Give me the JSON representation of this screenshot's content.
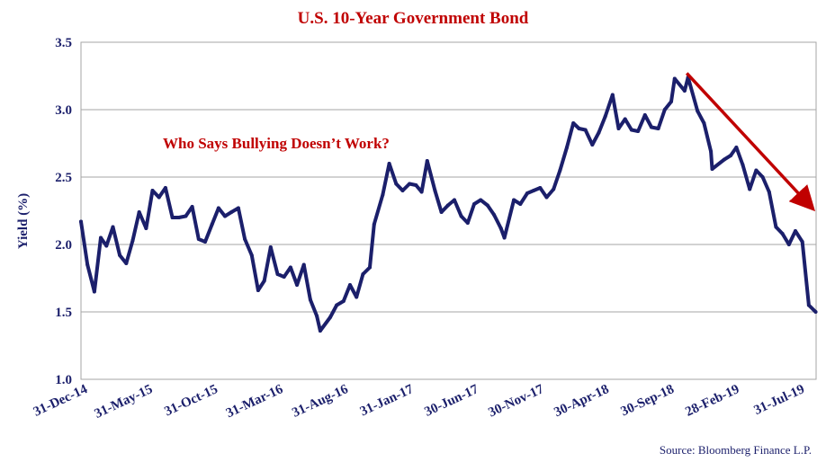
{
  "chart_data": {
    "type": "line",
    "title": "U.S. 10-Year Government Bond",
    "ylabel": "Yield (%)",
    "xlabel": "",
    "ylim": [
      1.0,
      3.5
    ],
    "yticks": [
      1.0,
      1.5,
      2.0,
      2.5,
      3.0,
      3.5
    ],
    "y_tick_labels": [
      "1.0",
      "1.5",
      "2.0",
      "2.5",
      "3.0",
      "3.5"
    ],
    "x_tick_labels": [
      "31-Dec-14",
      "31-May-15",
      "31-Oct-15",
      "31-Mar-16",
      "31-Aug-16",
      "31-Jan-17",
      "30-Jun-17",
      "30-Nov-17",
      "30-Apr-18",
      "30-Sep-18",
      "28-Feb-19",
      "31-Jul-19"
    ],
    "xlim": [
      "2014-12-31",
      "2019-09-01"
    ],
    "grid": "horizontal",
    "annotation": "Who Says Bullying Doesn’t Work?",
    "source": "Source: Bloomberg Finance L.P.",
    "colors": {
      "line": "#1b1f6b",
      "title": "#c00000",
      "arrow": "#c00000",
      "grid": "#a6a6a6"
    },
    "arrow": {
      "from": [
        "2018-11-05",
        3.27
      ],
      "to": [
        "2019-08-20",
        2.28
      ]
    },
    "series": [
      {
        "x": [
          "2014-12-31",
          "2015-01-15",
          "2015-01-31",
          "2015-02-15",
          "2015-02-28",
          "2015-03-15",
          "2015-03-31",
          "2015-04-15",
          "2015-04-30",
          "2015-05-15",
          "2015-05-31",
          "2015-06-15",
          "2015-06-30",
          "2015-07-15",
          "2015-07-31",
          "2015-08-15",
          "2015-08-31",
          "2015-09-15",
          "2015-09-30",
          "2015-10-15",
          "2015-10-31",
          "2015-11-15",
          "2015-11-30",
          "2015-12-15",
          "2015-12-31",
          "2016-01-15",
          "2016-01-31",
          "2016-02-15",
          "2016-02-29",
          "2016-03-15",
          "2016-03-31",
          "2016-04-15",
          "2016-04-30",
          "2016-05-15",
          "2016-05-31",
          "2016-06-15",
          "2016-06-30",
          "2016-07-08",
          "2016-07-31",
          "2016-08-15",
          "2016-08-31",
          "2016-09-15",
          "2016-09-30",
          "2016-10-15",
          "2016-10-31",
          "2016-11-10",
          "2016-11-30",
          "2016-12-15",
          "2016-12-31",
          "2017-01-15",
          "2017-01-31",
          "2017-02-15",
          "2017-02-28",
          "2017-03-13",
          "2017-03-31",
          "2017-04-15",
          "2017-04-30",
          "2017-05-15",
          "2017-05-31",
          "2017-06-15",
          "2017-06-30",
          "2017-07-15",
          "2017-07-31",
          "2017-08-15",
          "2017-08-31",
          "2017-09-08",
          "2017-09-30",
          "2017-10-15",
          "2017-10-31",
          "2017-11-15",
          "2017-11-30",
          "2017-12-15",
          "2017-12-31",
          "2018-01-15",
          "2018-01-31",
          "2018-02-15",
          "2018-02-28",
          "2018-03-15",
          "2018-03-31",
          "2018-04-15",
          "2018-04-30",
          "2018-05-17",
          "2018-05-31",
          "2018-06-15",
          "2018-06-30",
          "2018-07-15",
          "2018-07-31",
          "2018-08-15",
          "2018-08-31",
          "2018-09-15",
          "2018-09-30",
          "2018-10-08",
          "2018-10-31",
          "2018-11-08",
          "2018-11-30",
          "2018-12-15",
          "2018-12-31",
          "2019-01-03",
          "2019-01-31",
          "2019-02-15",
          "2019-02-28",
          "2019-03-15",
          "2019-03-31",
          "2019-04-15",
          "2019-04-30",
          "2019-05-15",
          "2019-05-31",
          "2019-06-15",
          "2019-06-30",
          "2019-07-15",
          "2019-07-31",
          "2019-08-15",
          "2019-08-31"
        ],
        "values": [
          2.17,
          1.85,
          1.65,
          2.05,
          1.99,
          2.13,
          1.92,
          1.86,
          2.03,
          2.24,
          2.12,
          2.4,
          2.35,
          2.42,
          2.2,
          2.2,
          2.21,
          2.28,
          2.04,
          2.02,
          2.15,
          2.27,
          2.21,
          2.24,
          2.27,
          2.04,
          1.92,
          1.66,
          1.73,
          1.98,
          1.78,
          1.76,
          1.83,
          1.7,
          1.85,
          1.59,
          1.47,
          1.36,
          1.46,
          1.55,
          1.58,
          1.7,
          1.61,
          1.78,
          1.83,
          2.15,
          2.37,
          2.6,
          2.45,
          2.4,
          2.45,
          2.44,
          2.39,
          2.62,
          2.4,
          2.24,
          2.29,
          2.33,
          2.21,
          2.16,
          2.3,
          2.33,
          2.29,
          2.22,
          2.12,
          2.05,
          2.33,
          2.3,
          2.38,
          2.4,
          2.42,
          2.35,
          2.41,
          2.55,
          2.72,
          2.9,
          2.86,
          2.85,
          2.74,
          2.83,
          2.95,
          3.11,
          2.86,
          2.93,
          2.85,
          2.84,
          2.96,
          2.87,
          2.86,
          3.0,
          3.06,
          3.23,
          3.14,
          3.24,
          2.99,
          2.9,
          2.69,
          2.56,
          2.63,
          2.66,
          2.72,
          2.59,
          2.41,
          2.55,
          2.5,
          2.39,
          2.13,
          2.08,
          2.0,
          2.1,
          2.02,
          1.55,
          1.5
        ]
      }
    ]
  }
}
